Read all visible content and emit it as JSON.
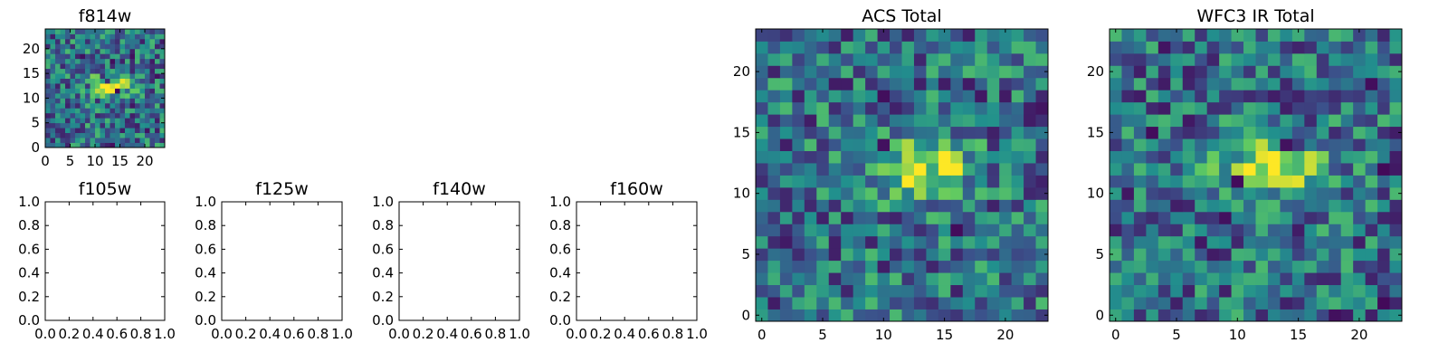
{
  "chart_data": [
    {
      "type": "heatmap",
      "title": "f814w",
      "xlim": [
        0,
        24
      ],
      "ylim": [
        0,
        24
      ],
      "xticks": [
        "0",
        "5",
        "10",
        "15",
        "20"
      ],
      "yticks": [
        "0",
        "5",
        "10",
        "15",
        "20"
      ],
      "colormap": "viridis",
      "grid": "24x24 pixel cutout",
      "source_peak": {
        "x": 12.5,
        "y": 12
      }
    },
    {
      "type": "heatmap",
      "title": "f105w",
      "xlim": [
        0.0,
        1.0
      ],
      "ylim": [
        0.0,
        1.0
      ],
      "xticks": [
        "0.0",
        "0.2",
        "0.4",
        "0.6",
        "0.8",
        "1.0"
      ],
      "yticks": [
        "0.0",
        "0.2",
        "0.4",
        "0.6",
        "0.8",
        "1.0"
      ]
    },
    {
      "type": "heatmap",
      "title": "f125w",
      "xlim": [
        0.0,
        1.0
      ],
      "ylim": [
        0.0,
        1.0
      ],
      "xticks": [
        "0.0",
        "0.2",
        "0.4",
        "0.6",
        "0.8",
        "1.0"
      ],
      "yticks": [
        "0.0",
        "0.2",
        "0.4",
        "0.6",
        "0.8",
        "1.0"
      ]
    },
    {
      "type": "heatmap",
      "title": "f140w",
      "xlim": [
        0.0,
        1.0
      ],
      "ylim": [
        0.0,
        1.0
      ],
      "xticks": [
        "0.0",
        "0.2",
        "0.4",
        "0.6",
        "0.8",
        "1.0"
      ],
      "yticks": [
        "0.0",
        "0.2",
        "0.4",
        "0.6",
        "0.8",
        "1.0"
      ]
    },
    {
      "type": "heatmap",
      "title": "f160w",
      "xlim": [
        0.0,
        1.0
      ],
      "ylim": [
        0.0,
        1.0
      ],
      "xticks": [
        "0.0",
        "0.2",
        "0.4",
        "0.6",
        "0.8",
        "1.0"
      ],
      "yticks": [
        "0.0",
        "0.2",
        "0.4",
        "0.6",
        "0.8",
        "1.0"
      ]
    },
    {
      "type": "heatmap",
      "title": "ACS Total",
      "xlim": [
        -0.5,
        23.5
      ],
      "ylim": [
        -0.5,
        23.5
      ],
      "xticks": [
        "0",
        "5",
        "10",
        "15",
        "20"
      ],
      "yticks": [
        "0",
        "5",
        "10",
        "15",
        "20"
      ],
      "colormap": "viridis",
      "grid": "24x24 pixel cutout",
      "source_peak": {
        "x": 13,
        "y": 12
      }
    },
    {
      "type": "heatmap",
      "title": "WFC3 IR Total",
      "xlim": [
        -0.5,
        23.5
      ],
      "ylim": [
        -0.5,
        23.5
      ],
      "xticks": [
        "0",
        "5",
        "10",
        "15",
        "20"
      ],
      "yticks": [
        "0",
        "5",
        "10",
        "15",
        "20"
      ],
      "colormap": "viridis",
      "grid": "24x24 pixel cutout",
      "source_peak": {
        "x": 13,
        "y": 12
      }
    }
  ],
  "colors": {
    "viridis_stops": [
      "#440154",
      "#3b528b",
      "#21908d",
      "#5dc963",
      "#fde725"
    ]
  }
}
